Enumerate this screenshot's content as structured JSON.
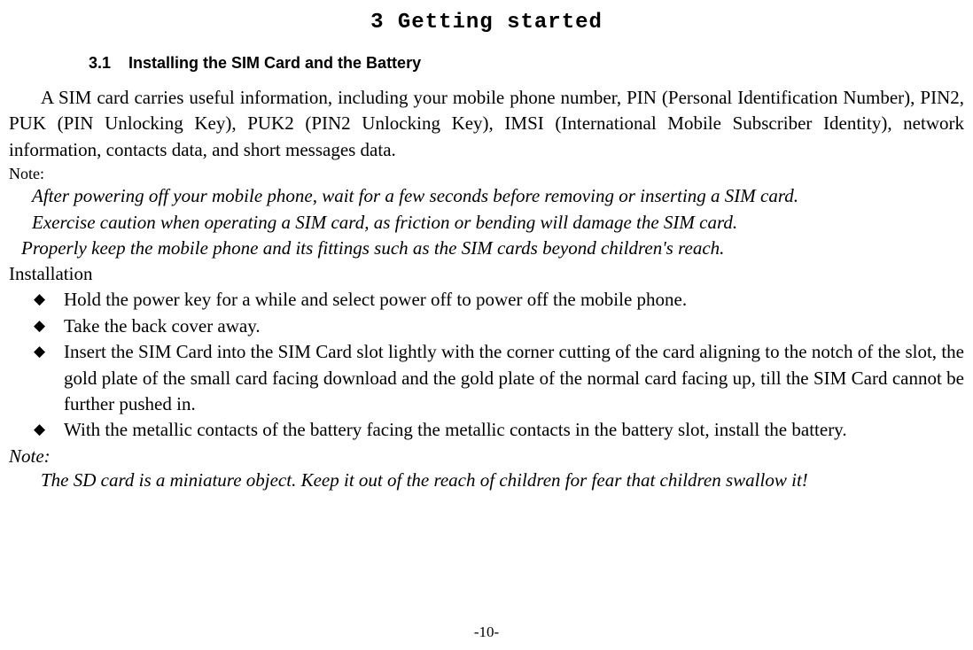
{
  "chapter": {
    "title": "3 Getting started"
  },
  "section": {
    "number": "3.1",
    "title": "Installing the SIM Card and the Battery"
  },
  "intro_paragraph": "A SIM card carries useful information, including your mobile phone number, PIN (Personal Identification Number), PIN2, PUK (PIN Unlocking Key), PUK2 (PIN2 Unlocking Key), IMSI (International Mobile Subscriber Identity), network information, contacts data, and short messages data.",
  "note_label": "Note:",
  "notes": {
    "line1": "After powering off your mobile phone, wait for a few seconds before removing or inserting a SIM card.",
    "line2": "Exercise caution when operating a SIM card, as friction or bending will damage the SIM card.",
    "line3": "Properly keep the mobile phone and its fittings such as the SIM cards beyond children's reach."
  },
  "installation_label": "Installation",
  "installation_steps": {
    "step1": "Hold the power key for a while and select power off to power off the mobile phone.",
    "step2": "Take the back cover away.",
    "step3": "Insert the SIM Card into the SIM Card slot lightly with the corner cutting of the card aligning to the notch of the slot, the gold plate of the small card facing download and the gold plate of the normal card facing up, till the SIM Card cannot be further pushed in.",
    "step4": "With the metallic contacts of the battery facing the metallic contacts in the battery slot, install the battery."
  },
  "note2_label": "Note:",
  "note2_text": "The SD card is a miniature object. Keep it out of the reach of children for fear that children swallow it!",
  "page_number": "-10-"
}
